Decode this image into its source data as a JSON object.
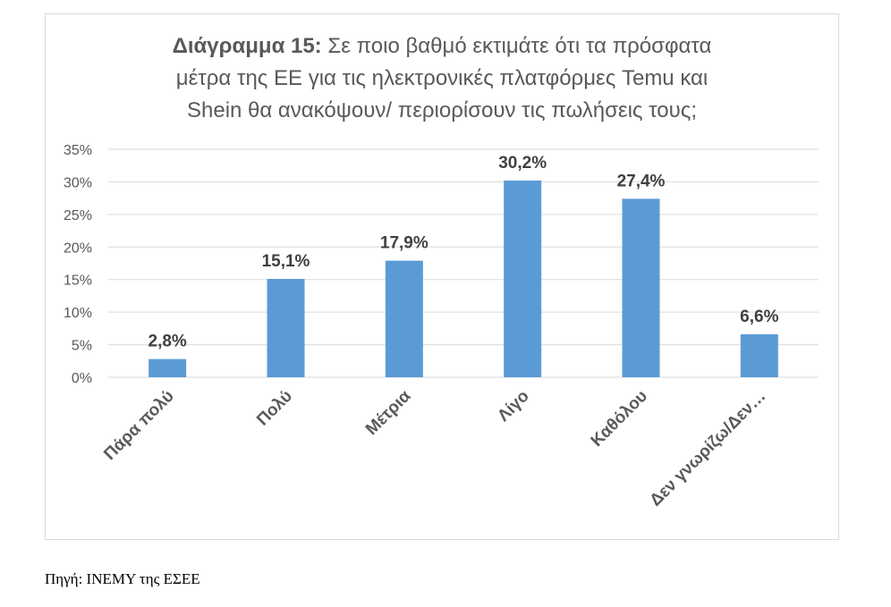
{
  "chart_data": {
    "type": "bar",
    "title_bold": "Διάγραμμα 15:",
    "title_line1": " Σε ποιο βαθμό εκτιμάτε ότι τα πρόσφατα",
    "title_line2": "μέτρα της ΕΕ για τις ηλεκτρονικές πλατφόρμες Temu και",
    "title_line3": "Shein θα ανακόψουν/ περιορίσουν τις πωλήσεις τους;",
    "categories": [
      "Πάρα πολύ",
      "Πολύ",
      "Μέτρια",
      "Λίγο",
      "Καθόλου",
      "Δεν γνωρίζω/Δεν…"
    ],
    "values": [
      2.8,
      15.1,
      17.9,
      30.2,
      27.4,
      6.6
    ],
    "data_labels": [
      "2,8%",
      "15,1%",
      "17,9%",
      "30,2%",
      "27,4%",
      "6,6%"
    ],
    "y_ticks": [
      0,
      5,
      10,
      15,
      20,
      25,
      30,
      35
    ],
    "y_tick_labels": [
      "0%",
      "5%",
      "10%",
      "15%",
      "20%",
      "25%",
      "30%",
      "35%"
    ],
    "ylim": [
      0,
      35
    ],
    "grid": true,
    "legend": "none",
    "bar_color": "#5b9bd5"
  },
  "source": "Πηγή: ΙΝΕΜΥ της ΕΣΕΕ"
}
